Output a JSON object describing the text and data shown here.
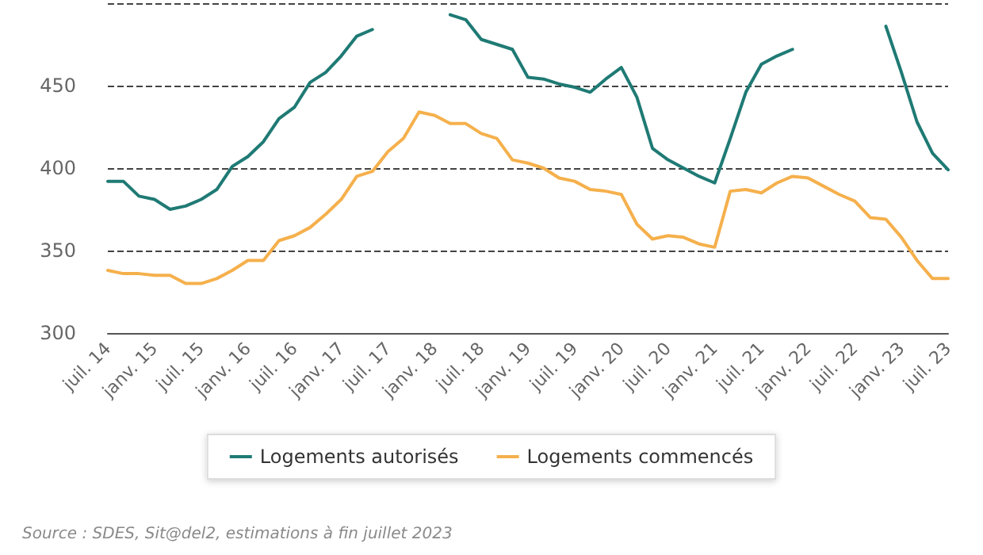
{
  "chart_data": {
    "type": "line",
    "categories": [
      "juil. 14",
      null,
      null,
      "janv. 15",
      null,
      null,
      "juil. 15",
      null,
      null,
      "janv. 16",
      null,
      null,
      "juil. 16",
      null,
      null,
      "janv. 17",
      null,
      null,
      "juil. 17",
      null,
      null,
      "janv. 18",
      null,
      null,
      "juil. 18",
      null,
      null,
      "janv. 19",
      null,
      null,
      "juil. 19",
      null,
      null,
      "janv. 20",
      null,
      null,
      "juil. 20",
      null,
      null,
      "janv. 21",
      null,
      null,
      "juil. 21",
      null,
      null,
      "janv. 22",
      null,
      null,
      "juil. 22",
      null,
      null,
      "janv. 23",
      null,
      null,
      "juil. 23"
    ],
    "series": [
      {
        "name": "Logements autorisés",
        "color": "#1f7a74",
        "values": [
          392,
          392,
          383,
          381,
          375,
          377,
          381,
          387,
          401,
          407,
          416,
          430,
          437,
          452,
          458,
          468,
          480,
          484,
          null,
          null,
          null,
          null,
          493,
          490,
          478,
          475,
          472,
          455,
          454,
          451,
          449,
          446,
          454,
          461,
          443,
          412,
          405,
          400,
          395,
          391,
          418,
          446,
          463,
          468,
          472,
          null,
          null,
          null,
          null,
          null,
          486,
          458,
          428,
          409,
          399
        ]
      },
      {
        "name": "Logements commencés",
        "color": "#f5b04c",
        "values": [
          338,
          336,
          336,
          335,
          335,
          330,
          330,
          333,
          338,
          344,
          344,
          356,
          359,
          364,
          372,
          381,
          395,
          398,
          410,
          418,
          434,
          432,
          427,
          427,
          421,
          418,
          405,
          403,
          400,
          394,
          392,
          387,
          386,
          384,
          366,
          357,
          359,
          358,
          354,
          352,
          386,
          387,
          385,
          391,
          395,
          394,
          389,
          384,
          380,
          370,
          369,
          358,
          344,
          333,
          333
        ]
      }
    ],
    "ylim": [
      300,
      500
    ],
    "yticks": [
      300,
      350,
      400,
      450,
      {
        "value": 500,
        "label": null
      }
    ],
    "grid": "y",
    "legend": "bottom",
    "marker": "none",
    "line_style": "solid",
    "annotations": [
      "Source : SDES, Sit@del2, estimations à fin juillet 2023"
    ]
  }
}
